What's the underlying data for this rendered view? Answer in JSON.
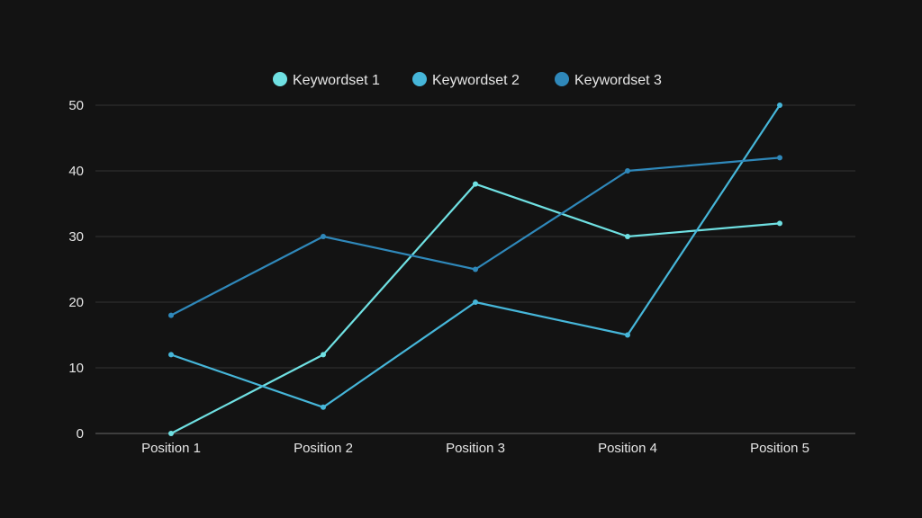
{
  "chart_data": {
    "type": "line",
    "categories": [
      "Position 1",
      "Position 2",
      "Position 3",
      "Position 4",
      "Position 5"
    ],
    "ylim": [
      0,
      50
    ],
    "yticks": [
      "0",
      "10",
      "20",
      "30",
      "40",
      "50"
    ],
    "grid": true,
    "legend_position": "top",
    "series": [
      {
        "name": "Keywordset 1",
        "color": "#6fe0e2",
        "values": [
          0,
          12,
          38,
          30,
          32
        ]
      },
      {
        "name": "Keywordset 2",
        "color": "#46b6d9",
        "values": [
          12,
          4,
          20,
          15,
          50
        ]
      },
      {
        "name": "Keywordset 3",
        "color": "#2f88ba",
        "values": [
          18,
          30,
          25,
          40,
          42
        ]
      }
    ]
  }
}
